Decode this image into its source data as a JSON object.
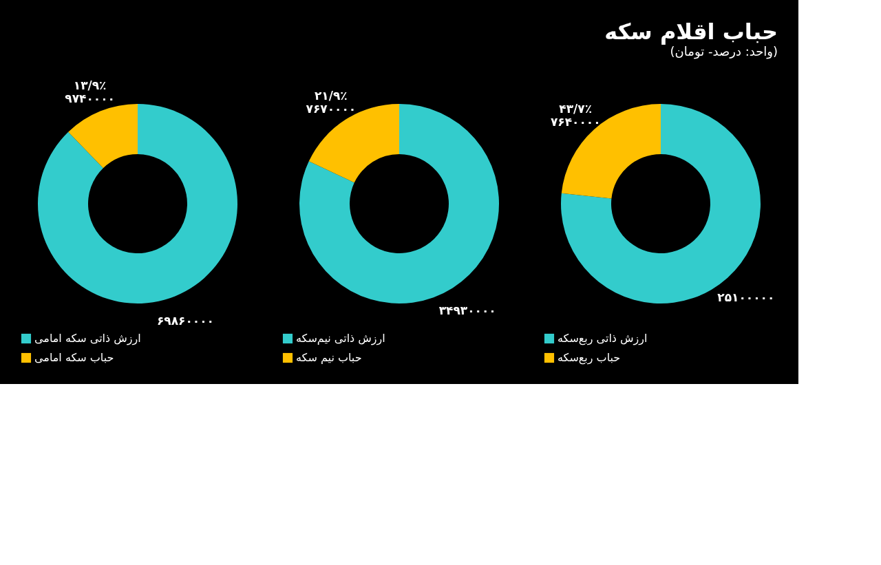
{
  "chart_data": [
    {
      "type": "donut",
      "title": "حباب اقلام سکه",
      "subtitle": "(واحد: درصد- تومان)",
      "categories": [
        "ارزش ذاتی ربع‌سکه",
        "حباب ربع‌سکه"
      ],
      "values": [
        25100000,
        7640000
      ],
      "colors": [
        "#33cccc",
        "#ffc000"
      ],
      "value_labels": [
        "۲۵۱۰۰۰۰۰",
        "۴۳/۷٪\n۷۶۴۰۰۰۰"
      ],
      "legend": "bottom"
    },
    {
      "type": "donut",
      "categories": [
        "ارزش ذاتی نیم‌سکه",
        "حباب نیم سکه"
      ],
      "values": [
        34930000,
        7670000
      ],
      "colors": [
        "#33cccc",
        "#ffc000"
      ],
      "value_labels": [
        "۳۴۹۳۰۰۰۰",
        "۲۱/۹٪\n۷۶۷۰۰۰۰"
      ],
      "legend": "bottom"
    },
    {
      "type": "donut",
      "categories": [
        "ارزش ذاتی سکه امامی",
        "حباب سکه امامی"
      ],
      "values": [
        69860000,
        9740000
      ],
      "colors": [
        "#33cccc",
        "#ffc000"
      ],
      "value_labels": [
        "۶۹۸۶۰۰۰۰",
        "۱۳/۹٪\n۹۷۴۰۰۰۰"
      ],
      "legend": "bottom"
    }
  ]
}
